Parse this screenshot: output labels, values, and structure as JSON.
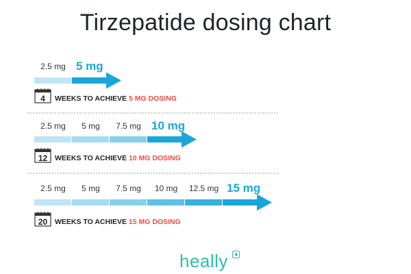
{
  "title": "Tirzepatide dosing chart",
  "rows": [
    {
      "doses": [
        "2.5 mg"
      ],
      "target": "5 mg",
      "weeks": "4",
      "caption_prefix": "WEEKS TO ACHIEVE ",
      "caption_highlight": "5 MG DOSING"
    },
    {
      "doses": [
        "2.5 mg",
        "5 mg",
        "7.5 mg"
      ],
      "target": "10 mg",
      "weeks": "12",
      "caption_prefix": "WEEKS TO ACHIEVE ",
      "caption_highlight": "10 MG DOSING"
    },
    {
      "doses": [
        "2.5 mg",
        "5 mg",
        "7.5 mg",
        "10 mg",
        "12.5 mg"
      ],
      "target": "15 mg",
      "weeks": "20",
      "caption_prefix": "WEEKS TO ACHIEVE ",
      "caption_highlight": "15 MG DOSING"
    }
  ],
  "colors": {
    "segments": [
      "#bfe6f4",
      "#a5dcf0",
      "#86d0ec",
      "#5fc1e6",
      "#37b1df"
    ],
    "arrow": "#1aa6d9",
    "highlight": "#ef4b3f",
    "logo": "#2cbfa8"
  },
  "logo": {
    "text": "heally",
    "icon": "plus-square-icon"
  }
}
